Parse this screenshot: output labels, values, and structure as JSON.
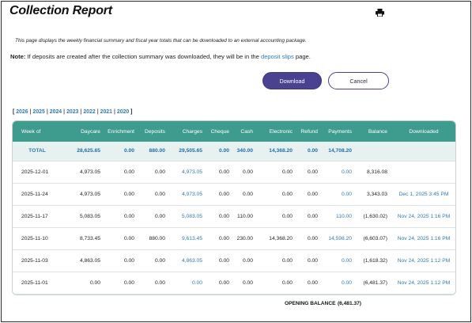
{
  "page": {
    "title": "Collection Report",
    "description": "This page displays the weekly financial summary and fiscal year totals that can be downloaded to an external accounting package.",
    "note_label": "Note:",
    "note_text": " If deposits are created after the collection summary was downloaded, they will be in the ",
    "note_link": "deposit slips",
    "note_suffix": " page."
  },
  "actions": {
    "download_label": "Download",
    "cancel_label": "Cancel"
  },
  "icons": {
    "print": "printer-icon"
  },
  "colors": {
    "header_teal": "#3d9c8d",
    "button_purple": "#4a4290",
    "link_blue": "#2f7ab8",
    "total_row_bg": "#e7f1ef"
  },
  "years": {
    "open": "[",
    "close": "]",
    "items": [
      "2026",
      "2025",
      "2024",
      "2023",
      "2022",
      "2021",
      "2020"
    ]
  },
  "table": {
    "headers": [
      "Week of",
      "Daycare",
      "Enrichment",
      "Deposits",
      "Charges",
      "Cheque",
      "Cash",
      "Electronic",
      "Refund",
      "Payments",
      "Balance",
      "Downloaded"
    ],
    "total": [
      "TOTAL",
      "28,625.65",
      "0.00",
      "880.00",
      "29,505.65",
      "0.00",
      "340.00",
      "14,368.20",
      "0.00",
      "14,708.20",
      "",
      ""
    ],
    "rows": [
      [
        "2025-12-01",
        "4,973.05",
        "0.00",
        "0.00",
        "4,973.05",
        "0.00",
        "0.00",
        "0.00",
        "0.00",
        "0.00",
        "8,316.08",
        ""
      ],
      [
        "2025-11-24",
        "4,973.05",
        "0.00",
        "0.00",
        "4,973.05",
        "0.00",
        "0.00",
        "0.00",
        "0.00",
        "0.00",
        "3,343.03",
        "Dec 1, 2025 3:45 PM"
      ],
      [
        "2025-11-17",
        "5,083.05",
        "0.00",
        "0.00",
        "5,083.05",
        "0.00",
        "110.00",
        "0.00",
        "0.00",
        "110.00",
        "(1,630.02)",
        "Nov 24, 2025 1:16 PM"
      ],
      [
        "2025-11-10",
        "8,733.45",
        "0.00",
        "880.00",
        "9,613.45",
        "0.00",
        "230.00",
        "14,368.20",
        "0.00",
        "14,598.20",
        "(6,603.07)",
        "Nov 24, 2025 1:16 PM"
      ],
      [
        "2025-11-03",
        "4,863.05",
        "0.00",
        "0.00",
        "4,863.05",
        "0.00",
        "0.00",
        "0.00",
        "0.00",
        "0.00",
        "(1,618.32)",
        "Nov 24, 2025 1:12 PM"
      ],
      [
        "2025-11-01",
        "0.00",
        "0.00",
        "0.00",
        "0.00",
        "0.00",
        "0.00",
        "0.00",
        "0.00",
        "0.00",
        "(6,481.37)",
        "Nov 24, 2025 1:12 PM"
      ]
    ],
    "opening_balance_label": "OPENING BALANCE",
    "opening_balance_value": "(6,481.37)"
  }
}
